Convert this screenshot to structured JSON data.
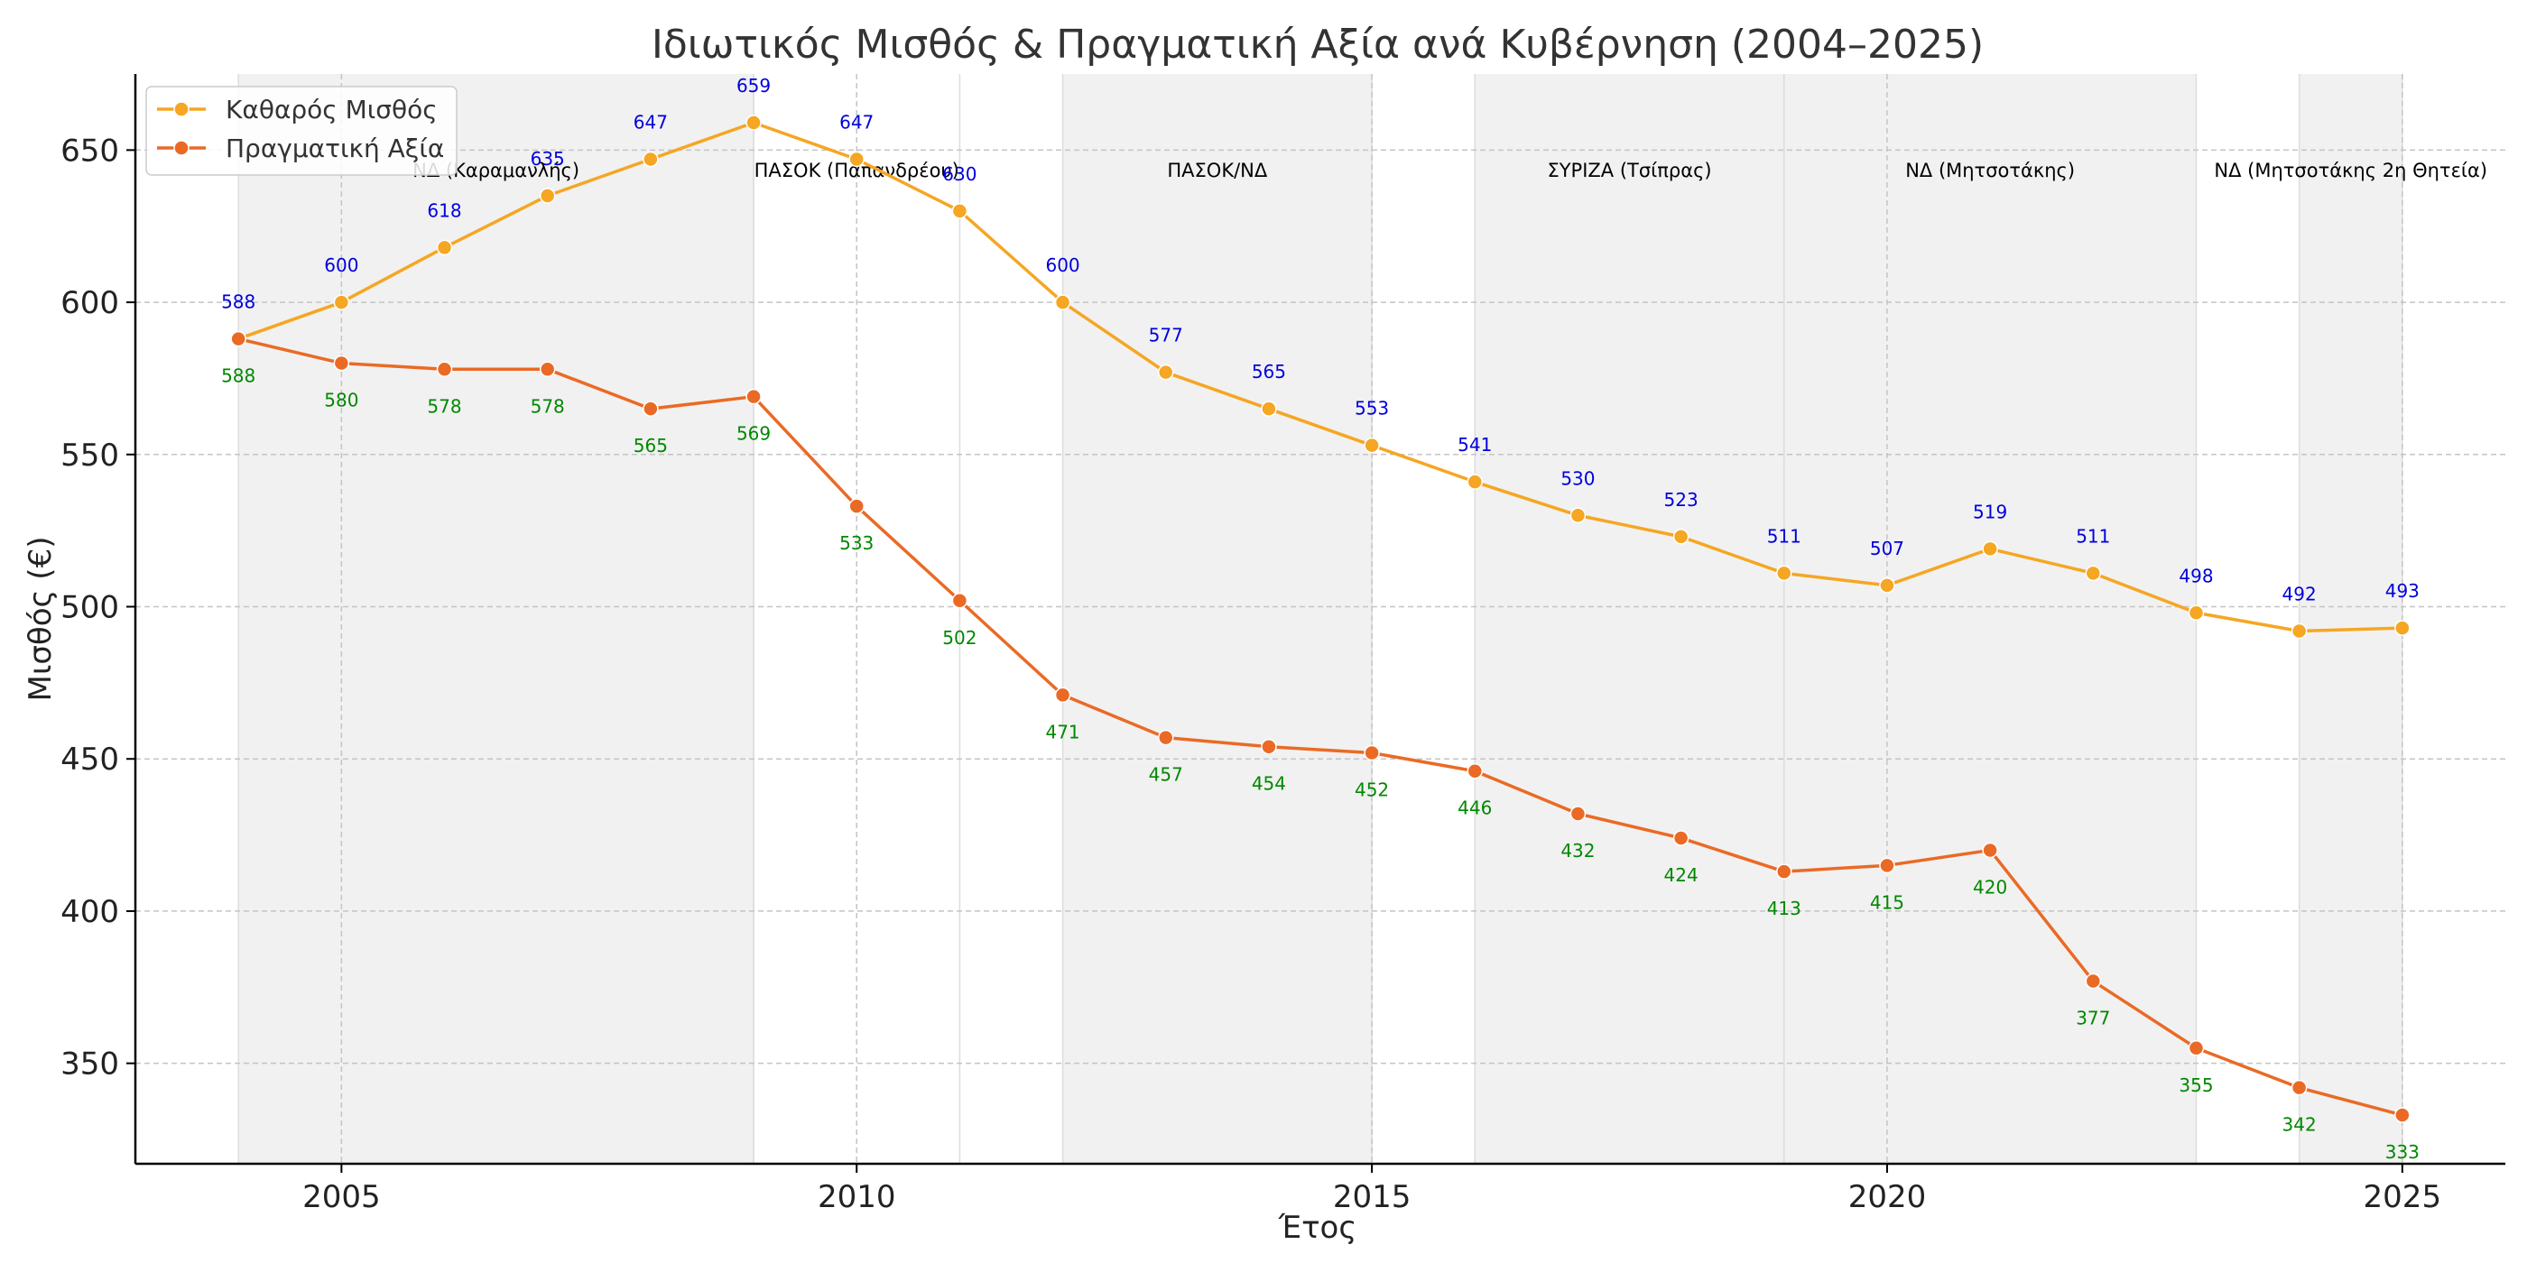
{
  "chart_data": {
    "type": "line",
    "title": "Ιδιωτικός Μισθός & Πραγματική Αξία ανά Κυβέρνηση (2004–2025)",
    "xlabel": "Έτος",
    "ylabel": "Μισθός (€)",
    "xlim": [
      2003,
      2026
    ],
    "ylim": [
      317,
      675
    ],
    "x_ticks": [
      2005,
      2010,
      2015,
      2020,
      2025
    ],
    "y_ticks": [
      350,
      400,
      450,
      500,
      550,
      600,
      650
    ],
    "grid": true,
    "legend_position": "top-left",
    "x": [
      2004,
      2005,
      2006,
      2007,
      2008,
      2009,
      2010,
      2011,
      2012,
      2013,
      2014,
      2015,
      2016,
      2017,
      2018,
      2019,
      2020,
      2021,
      2022,
      2023,
      2024,
      2025
    ],
    "series": [
      {
        "name": "Καθαρός Μισθός",
        "color": "#f5a623",
        "label_color": "#0000dd",
        "label_position": "above",
        "values": [
          588,
          600,
          618,
          635,
          647,
          659,
          647,
          630,
          600,
          577,
          565,
          553,
          541,
          530,
          523,
          511,
          507,
          519,
          511,
          498,
          492,
          493
        ],
        "labels": [
          "588",
          "600",
          "618",
          "635",
          "647",
          "659",
          "647",
          "630",
          "600",
          "577",
          "565",
          "553",
          "541",
          "530",
          "523",
          "511",
          "507",
          "519",
          "511",
          "498",
          "492",
          "493"
        ]
      },
      {
        "name": "Πραγματική Αξία",
        "color": "#ea6a25",
        "label_color": "#008800",
        "label_position": "below",
        "values": [
          588,
          580,
          578,
          578,
          565,
          569,
          533,
          502,
          471,
          457,
          454,
          452,
          446,
          432,
          424,
          413,
          415,
          420,
          377,
          355,
          342,
          333
        ],
        "labels": [
          "588",
          "580",
          "578",
          "578",
          "565",
          "569",
          "533",
          "502",
          "471",
          "457",
          "454",
          "452",
          "446",
          "432",
          "424",
          "413",
          "415",
          "420",
          "377",
          "355",
          "342",
          "333"
        ]
      }
    ],
    "periods": [
      {
        "label": "ΝΔ (Καραμανλής)",
        "start": 2004,
        "end": 2009,
        "shaded": true
      },
      {
        "label": "ΠΑΣΟΚ (Παπανδρέου)",
        "start": 2009,
        "end": 2011,
        "shaded": false
      },
      {
        "label": "ΠΑΣΟΚ/ΝΔ",
        "start": 2012,
        "end": 2015,
        "shaded": true
      },
      {
        "label": "ΣΥΡΙΖΑ (Τσίπρας)",
        "start": 2016,
        "end": 2019,
        "shaded": true
      },
      {
        "label": "ΝΔ (Μητσοτάκης)",
        "start": 2019,
        "end": 2023,
        "shaded": true
      },
      {
        "label": "ΝΔ (Μητσοτάκης 2η Θητεία)",
        "start": 2024,
        "end": 2025,
        "shaded": true
      }
    ]
  }
}
